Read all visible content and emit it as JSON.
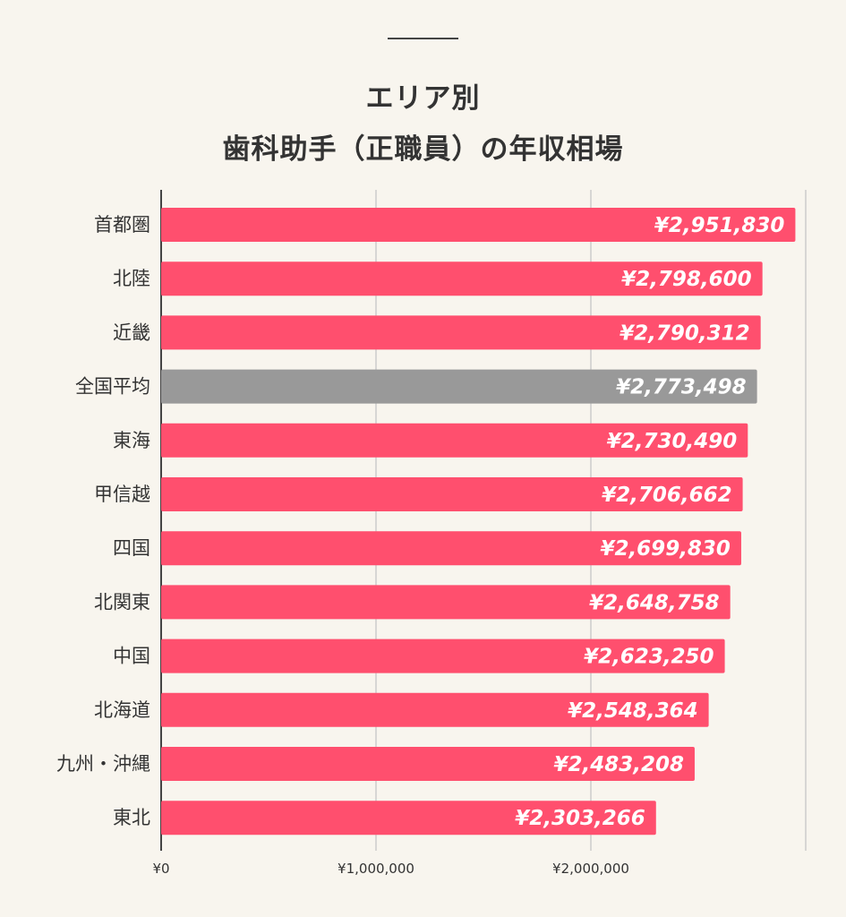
{
  "title": {
    "line1": "エリア別",
    "line2": "歯科助手（正職員）の年収相場"
  },
  "colors": {
    "background": "#f8f5ee",
    "bar": "#ff4f6e",
    "highlight_bar": "#999999",
    "grid": "#cccccc",
    "axis": "#444444",
    "text": "#333333"
  },
  "chart_data": {
    "type": "bar",
    "orientation": "horizontal",
    "categories": [
      "首都圏",
      "北陸",
      "近畿",
      "全国平均",
      "東海",
      "甲信越",
      "四国",
      "北関東",
      "中国",
      "北海道",
      "九州・沖縄",
      "東北"
    ],
    "values": [
      2951830,
      2798600,
      2790312,
      2773498,
      2730490,
      2706662,
      2699830,
      2648758,
      2623250,
      2548364,
      2483208,
      2303266
    ],
    "value_labels": [
      "¥2,951,830",
      "¥2,798,600",
      "¥2,790,312",
      "¥2,773,498",
      "¥2,730,490",
      "¥2,706,662",
      "¥2,699,830",
      "¥2,648,758",
      "¥2,623,250",
      "¥2,548,364",
      "¥2,483,208",
      "¥2,303,266"
    ],
    "highlight_category": "全国平均",
    "x_ticks": [
      0,
      1000000,
      2000000
    ],
    "x_tick_labels": [
      "¥0",
      "¥1,000,000",
      "¥2,000,000"
    ],
    "xlim": [
      0,
      3000000
    ],
    "grid": true
  }
}
